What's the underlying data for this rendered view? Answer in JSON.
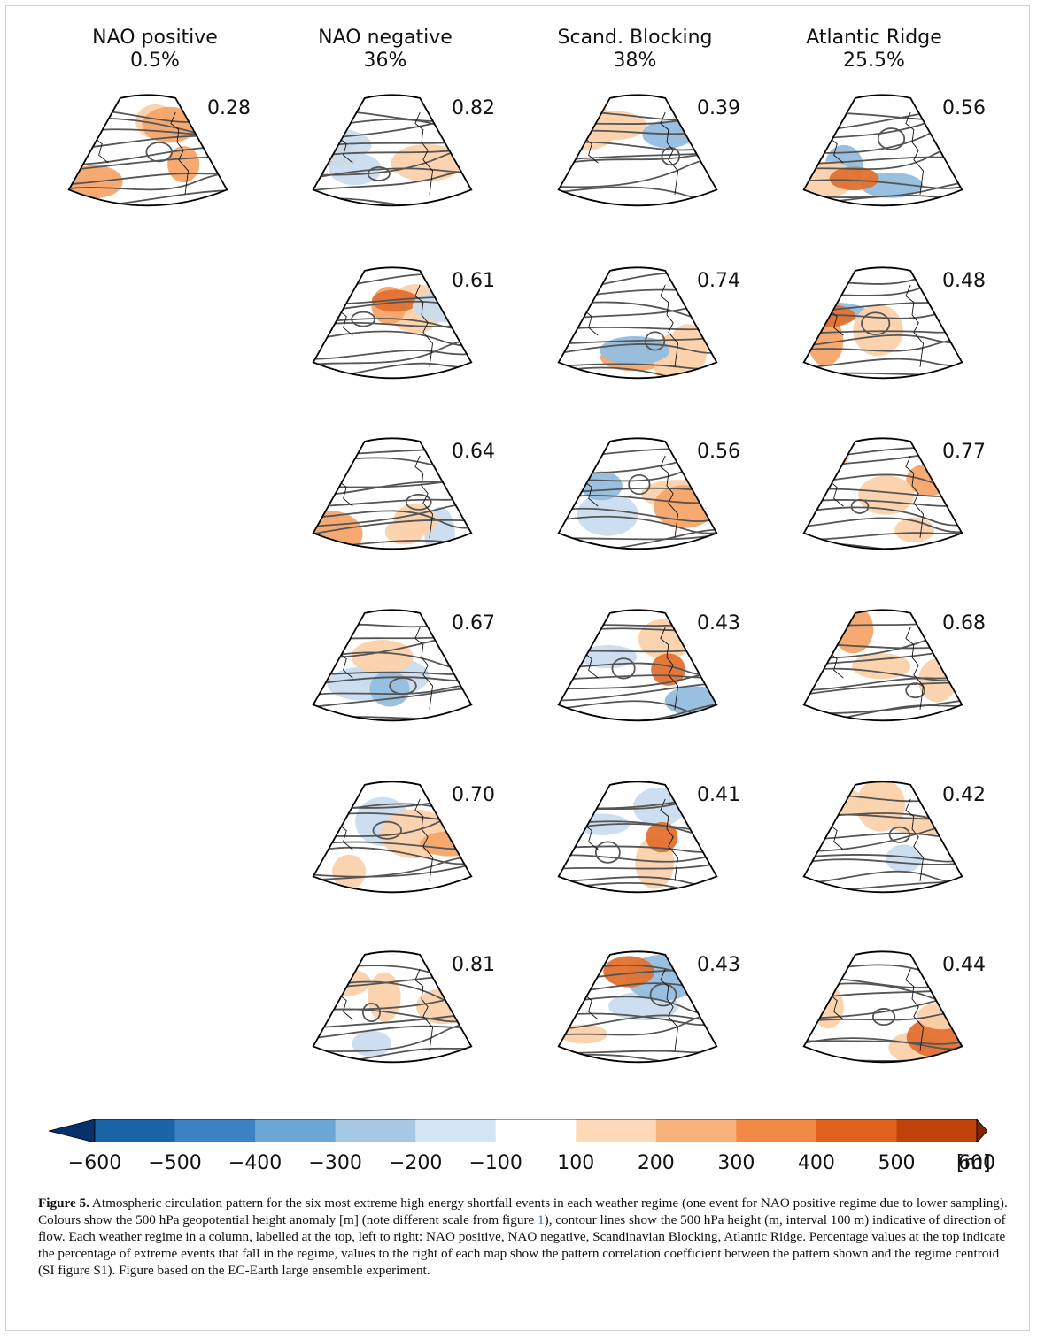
{
  "columns": [
    {
      "name": "NAO positive",
      "pct": "0.5%"
    },
    {
      "name": "NAO negative",
      "pct": "36%"
    },
    {
      "name": "Scand. Blocking",
      "pct": "38%"
    },
    {
      "name": "Atlantic Ridge",
      "pct": "25.5%"
    }
  ],
  "correlations": [
    [
      "0.28",
      "",
      "",
      "",
      "",
      ""
    ],
    [
      "0.82",
      "0.61",
      "0.64",
      "0.67",
      "0.70",
      "0.81"
    ],
    [
      "0.39",
      "0.74",
      "0.56",
      "0.43",
      "0.41",
      "0.43"
    ],
    [
      "0.56",
      "0.48",
      "0.77",
      "0.68",
      "0.42",
      "0.44"
    ]
  ],
  "colorbar": {
    "ticks": [
      "−600",
      "−500",
      "−400",
      "−300",
      "−200",
      "−100",
      "100",
      "200",
      "300",
      "400",
      "500",
      "600"
    ],
    "unit": "[m]",
    "colors": [
      "#08306b",
      "#1c64a8",
      "#3b82c4",
      "#6aa7d6",
      "#a6c8e4",
      "#d4e4f3",
      "#ffffff",
      "#fdd9b8",
      "#f9b27c",
      "#f28a45",
      "#e2611c",
      "#c0430b",
      "#7f2704"
    ]
  },
  "caption": {
    "label": "Figure 5.",
    "text_1": "Atmospheric circulation pattern for the six most extreme high energy shortfall events in each weather regime (one event for NAO positive regime due to lower sampling). Colours show the 500 hPa geopotential height anomaly [m] (note different scale from figure ",
    "ref": "1",
    "text_2": "), contour lines show the 500 hPa height (m, interval 100 m) indicative of direction of flow. Each weather regime in a column, labelled at the top, left to right: NAO positive, NAO negative, Scandinavian Blocking, Atlantic Ridge. Percentage values at the top indicate the percentage of extreme events that fall in the regime, values to the right of each map show the pattern correlation coefficient between the pattern shown and the regime centroid (SI figure S1). Figure based on the EC-Earth large ensemble experiment."
  }
}
